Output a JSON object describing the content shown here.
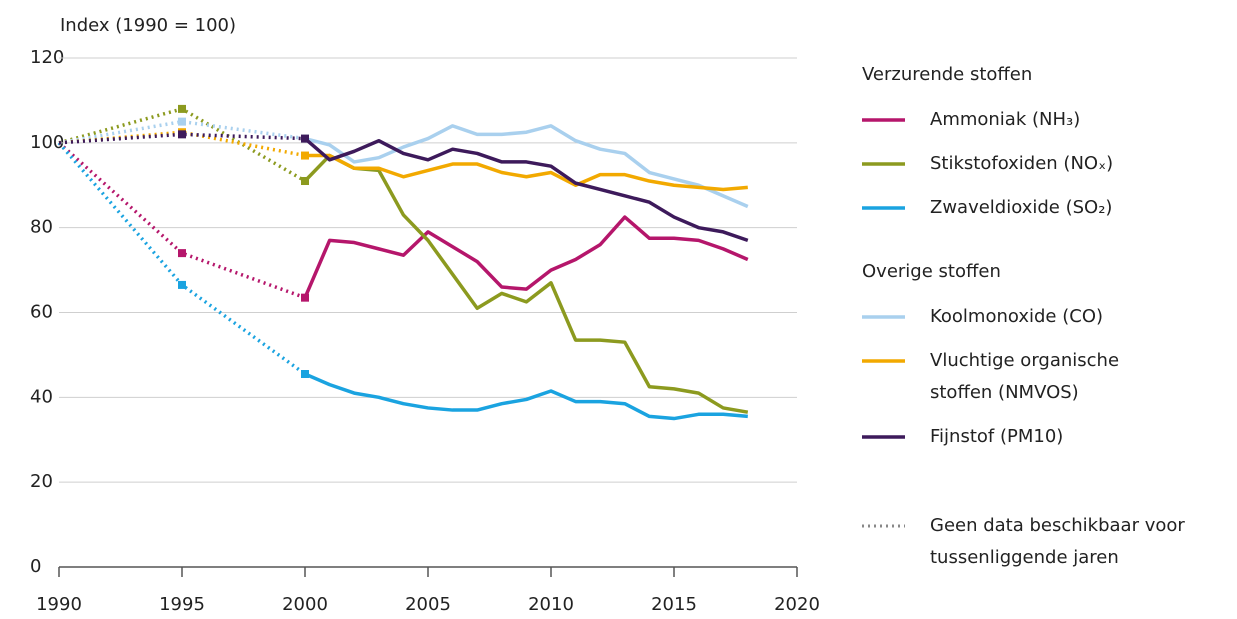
{
  "chart_data": {
    "type": "line",
    "y_label": "Index (1990 = 100)",
    "x": [
      1990,
      1995,
      2000,
      2001,
      2002,
      2003,
      2004,
      2005,
      2006,
      2007,
      2008,
      2009,
      2010,
      2011,
      2012,
      2013,
      2014,
      2015,
      2016,
      2017,
      2018
    ],
    "xlim": [
      1990,
      2020
    ],
    "xticks": [
      1990,
      1995,
      2000,
      2005,
      2010,
      2015,
      2020
    ],
    "ylim": [
      0,
      120
    ],
    "yticks": [
      0,
      20,
      40,
      60,
      80,
      100,
      120
    ],
    "grid": true,
    "series": [
      {
        "name": "Ammoniak (NH₃)",
        "group": "Verzurende stoffen",
        "color": "#b5166b",
        "values": [
          100,
          74,
          63.5,
          77,
          76.5,
          75,
          73.5,
          79,
          75.5,
          72,
          66,
          65.5,
          70,
          72.5,
          76,
          82.5,
          77.5,
          77.5,
          77,
          75,
          72.5
        ]
      },
      {
        "name": "Stikstofoxiden (NOₓ)",
        "group": "Verzurende stoffen",
        "color": "#8c9a1f",
        "values": [
          100,
          108,
          91,
          97,
          94,
          93.5,
          83,
          77,
          69,
          61,
          64.5,
          62.5,
          67,
          53.5,
          53.5,
          53,
          42.5,
          42,
          41,
          37.5,
          36.5
        ]
      },
      {
        "name": "Zwaveldioxide (SO₂)",
        "group": "Verzurende stoffen",
        "color": "#1aa3e0",
        "values": [
          100,
          66.5,
          45.5,
          43,
          41,
          40,
          38.5,
          37.5,
          37,
          37,
          38.5,
          39.5,
          41.5,
          39,
          39,
          38.5,
          35.5,
          35,
          36,
          36,
          35.5
        ]
      },
      {
        "name": "Koolmonoxide (CO)",
        "group": "Overige stoffen",
        "color": "#a9d0ee",
        "values": [
          100,
          105,
          101,
          99.5,
          95.5,
          96.5,
          99,
          101,
          104,
          102,
          102,
          102.5,
          104,
          100.5,
          98.5,
          97.5,
          93,
          91.5,
          90,
          87.5,
          85
        ]
      },
      {
        "name": "Vluchtige organische stoffen (NMVOS)",
        "group": "Overige stoffen",
        "color": "#f2a900",
        "values": [
          100,
          102.5,
          97,
          97,
          94,
          94,
          92,
          93.5,
          95,
          95,
          93,
          92,
          93,
          90,
          92.5,
          92.5,
          91,
          90,
          89.5,
          89,
          89.5
        ]
      },
      {
        "name": "Fijnstof (PM10)",
        "group": "Overige stoffen",
        "color": "#3d1a5b",
        "values": [
          100,
          102,
          101,
          96,
          98,
          100.5,
          97.5,
          96,
          98.5,
          97.5,
          95.5,
          95.5,
          94.5,
          90.5,
          89,
          87.5,
          86,
          82.5,
          80,
          79,
          77
        ]
      }
    ],
    "dotted_label": "Geen data beschikbaar voor tussenliggende jaren",
    "dotted_color": "#888888"
  }
}
